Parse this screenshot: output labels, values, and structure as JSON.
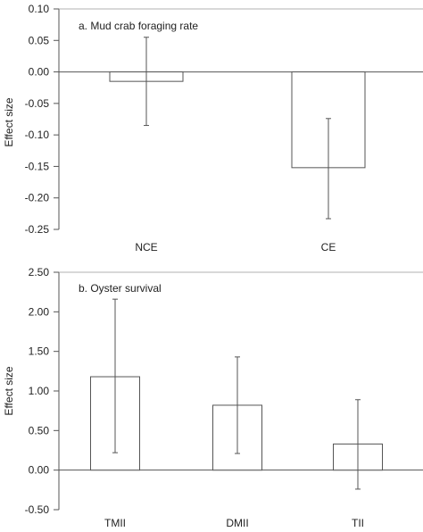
{
  "chart_data": [
    {
      "type": "bar",
      "title": "a. Mud crab foraging rate",
      "ylabel": "Effect size",
      "xlabel": "",
      "categories": [
        "NCE",
        "CE"
      ],
      "values": [
        -0.015,
        -0.152
      ],
      "error_low": [
        -0.085,
        -0.233
      ],
      "error_high": [
        0.055,
        -0.074
      ],
      "ylim": [
        -0.25,
        0.1
      ],
      "yticks": [
        0.1,
        0.05,
        0.0,
        -0.05,
        -0.1,
        -0.15,
        -0.2,
        -0.25
      ],
      "ytick_labels": [
        "0.10",
        "0.05",
        "0.00",
        "-0.05",
        "-0.10",
        "-0.15",
        "-0.20",
        "-0.25"
      ],
      "grid": false,
      "bar_color": "#ffffff",
      "line_color": "#555555"
    },
    {
      "type": "bar",
      "title": "b. Oyster survival",
      "ylabel": "Effect size",
      "xlabel": "",
      "categories": [
        "TMII",
        "DMII",
        "TII"
      ],
      "values": [
        1.18,
        0.82,
        0.33
      ],
      "error_low": [
        0.22,
        0.21,
        -0.24
      ],
      "error_high": [
        2.16,
        1.43,
        0.89
      ],
      "ylim": [
        -0.5,
        2.5
      ],
      "yticks": [
        2.5,
        2.0,
        1.5,
        1.0,
        0.5,
        0.0,
        -0.5
      ],
      "ytick_labels": [
        "2.50",
        "2.00",
        "1.50",
        "1.00",
        "0.50",
        "0.00",
        "-0.50"
      ],
      "grid": false,
      "bar_color": "#ffffff",
      "line_color": "#555555"
    }
  ]
}
